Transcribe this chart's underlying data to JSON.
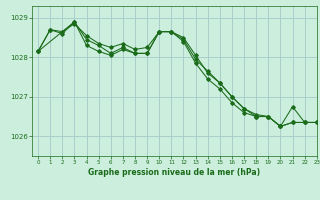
{
  "title": "Graphe pression niveau de la mer (hPa)",
  "bg_color": "#cceedd",
  "grid_color": "#aacccc",
  "line_color": "#1a6b1a",
  "xlim": [
    -0.5,
    23
  ],
  "ylim": [
    1025.5,
    1029.3
  ],
  "yticks": [
    1026,
    1027,
    1028,
    1029
  ],
  "xticks": [
    0,
    1,
    2,
    3,
    4,
    5,
    6,
    7,
    8,
    9,
    10,
    11,
    12,
    13,
    14,
    15,
    16,
    17,
    18,
    19,
    20,
    21,
    22,
    23
  ],
  "line1_x": [
    0,
    1,
    2,
    3,
    4,
    5,
    6,
    7,
    8,
    9,
    10,
    11,
    12,
    13,
    14,
    15,
    16,
    17,
    18,
    19,
    20,
    21,
    22,
    23
  ],
  "line1_y": [
    1028.15,
    1028.7,
    1028.65,
    1028.85,
    1028.55,
    1028.35,
    1028.25,
    1028.35,
    1028.2,
    1028.25,
    1028.65,
    1028.65,
    1028.5,
    1028.05,
    1027.6,
    1027.35,
    1027.0,
    1026.7,
    1026.55,
    1026.5,
    1026.25,
    1026.35,
    1026.35,
    1026.35
  ],
  "line2_x": [
    0,
    1,
    2,
    3,
    4,
    5,
    6,
    7,
    8,
    9,
    10,
    11,
    12,
    13,
    14,
    15,
    16,
    17,
    18,
    19,
    20,
    21,
    22,
    23
  ],
  "line2_y": [
    1028.15,
    1028.7,
    1028.6,
    1028.9,
    1028.3,
    1028.15,
    1028.05,
    1028.2,
    1028.1,
    1028.1,
    1028.65,
    1028.65,
    1028.4,
    1027.85,
    1027.45,
    1027.2,
    1026.85,
    1026.6,
    1026.5,
    1026.5,
    1026.25,
    1026.35,
    1026.35,
    1026.35
  ],
  "line3_x": [
    0,
    3,
    4,
    5,
    6,
    7,
    8,
    9,
    10,
    11,
    12,
    13,
    14,
    15,
    16,
    17,
    18,
    19,
    20,
    21,
    22,
    23
  ],
  "line3_y": [
    1028.15,
    1028.9,
    1028.45,
    1028.3,
    1028.1,
    1028.25,
    1028.1,
    1028.1,
    1028.65,
    1028.65,
    1028.45,
    1027.95,
    1027.65,
    1027.35,
    1027.0,
    1026.7,
    1026.5,
    1026.5,
    1026.25,
    1026.75,
    1026.35,
    1026.35
  ]
}
